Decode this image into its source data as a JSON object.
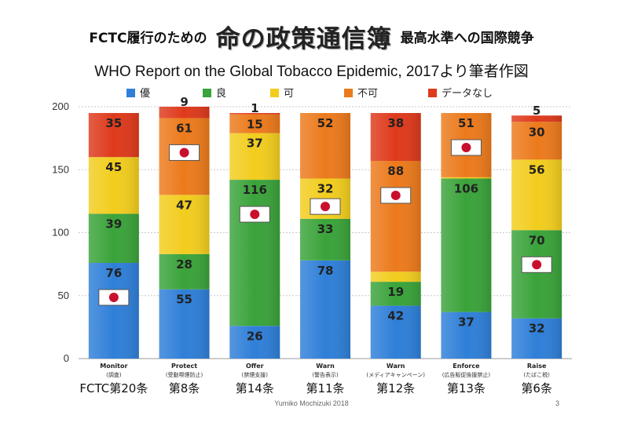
{
  "header": {
    "title_prefix": "FCTC履行のための",
    "title_main": "命の政策通信簿",
    "title_suffix": "最高水準への国際競争",
    "subtitle": "WHO Report on the Global Tobacco Epidemic, 2017より筆者作図"
  },
  "footer": {
    "author": "Yumiko Mochizuki 2018",
    "page": "3"
  },
  "chart_data": {
    "type": "bar",
    "stacked": true,
    "categories": [
      "Monitor",
      "Protect",
      "Offer",
      "Warn",
      "Warn",
      "Enforce",
      "Raise"
    ],
    "category_sublabels": [
      "(調査)",
      "(受動喫煙防止)",
      "(禁煙支援)",
      "(警告表示)",
      "(メディアキャンペーン)",
      "(広告販促後援禁止)",
      "(たばこ税)"
    ],
    "articles": [
      "FCTC第20条",
      "第8条",
      "第14条",
      "第11条",
      "第12条",
      "第13条",
      "第6条"
    ],
    "series": [
      {
        "name": "優",
        "color": "#2f7fd8",
        "values": [
          76,
          55,
          26,
          78,
          42,
          37,
          32
        ]
      },
      {
        "name": "良",
        "color": "#3aa33a",
        "values": [
          39,
          28,
          116,
          33,
          19,
          106,
          70
        ]
      },
      {
        "name": "可",
        "color": "#f2cd1e",
        "values": [
          45,
          47,
          37,
          32,
          8,
          1,
          56
        ]
      },
      {
        "name": "不可",
        "color": "#ec7a1c",
        "values": [
          0,
          61,
          15,
          52,
          88,
          51,
          30
        ]
      },
      {
        "name": "データなし",
        "color": "#de3a1c",
        "values": [
          35,
          9,
          1,
          0,
          38,
          0,
          5
        ]
      }
    ],
    "japan_marker_series": [
      "優",
      "不可",
      "良",
      "可",
      "不可",
      "不可",
      "良"
    ],
    "yticks": [
      0,
      50,
      100,
      150,
      200
    ],
    "ylim": [
      0,
      200
    ],
    "grid": true,
    "legend_position": "top"
  }
}
